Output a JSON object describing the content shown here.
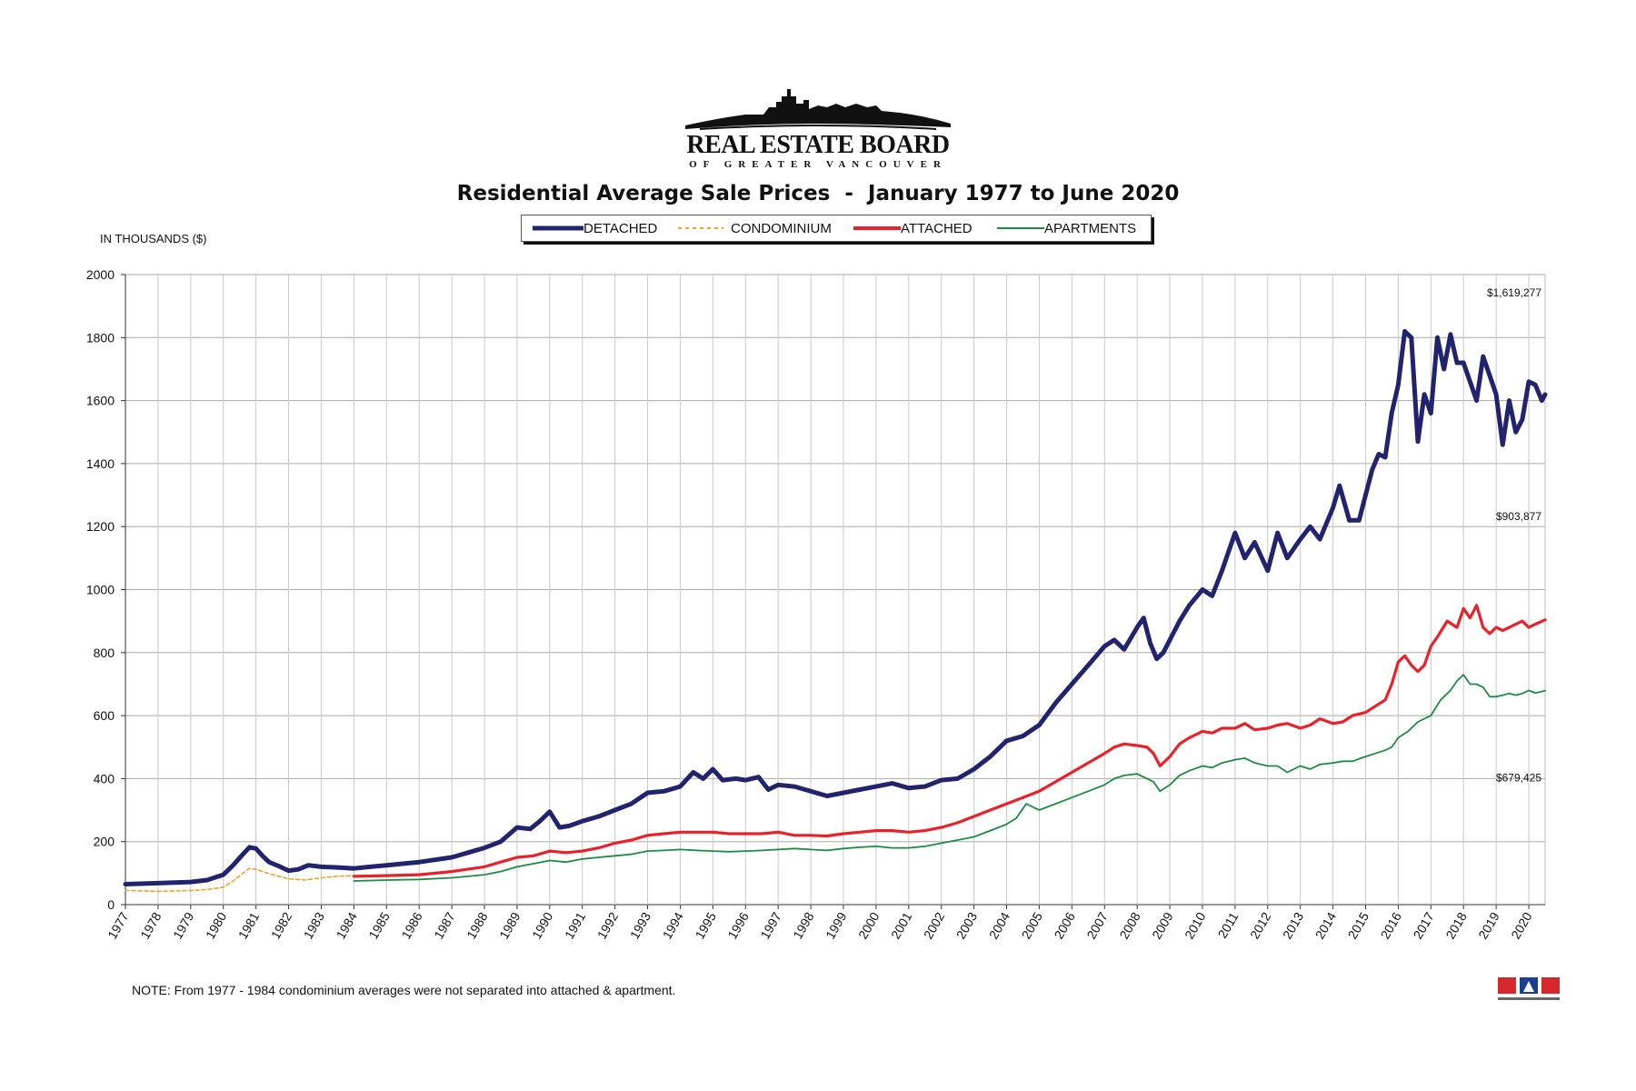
{
  "header": {
    "logo_main": "REAL ESTATE BOARD",
    "logo_sub": "OF GREATER VANCOUVER",
    "note": "NOTE:  From 1977 - 1984 condominium averages were not separated into attached & apartment.",
    "mls_logo": "MLS"
  },
  "colors": {
    "detached": "#22236e",
    "condominium": "#f0a030",
    "attached": "#e8212a",
    "apartments": "#1f8a44",
    "grid": "#c8c8c8"
  },
  "chart_data": {
    "type": "line",
    "title": "Residential Average Sale Prices  -  January 1977 to June 2020",
    "ylabel": "IN THOUSANDS ($)",
    "xlabel": "",
    "ylim": [
      0,
      2000
    ],
    "xlim": [
      1977,
      2020.5
    ],
    "yticks": [
      "0",
      "200",
      "400",
      "600",
      "800",
      "1000",
      "1200",
      "1400",
      "1600",
      "1800",
      "2000"
    ],
    "xticks": [
      "1977",
      "1978",
      "1979",
      "1980",
      "1981",
      "1982",
      "1983",
      "1984",
      "1985",
      "1986",
      "1987",
      "1988",
      "1989",
      "1990",
      "1991",
      "1992",
      "1993",
      "1994",
      "1995",
      "1996",
      "1997",
      "1998",
      "1999",
      "2000",
      "2001",
      "2002",
      "2003",
      "2004",
      "2005",
      "2006",
      "2007",
      "2008",
      "2009",
      "2010",
      "2011",
      "2012",
      "2013",
      "2014",
      "2015",
      "2016",
      "2017",
      "2018",
      "2019",
      "2020"
    ],
    "legend_position": "top-center",
    "grid": true,
    "series": [
      {
        "name": "DETACHED",
        "x": [
          1977,
          1978,
          1979,
          1979.5,
          1980,
          1980.3,
          1980.6,
          1980.8,
          1981,
          1981.2,
          1981.4,
          1981.7,
          1982,
          1982.3,
          1982.6,
          1983,
          1983.5,
          1984,
          1984.5,
          1985,
          1986,
          1987,
          1987.5,
          1988,
          1988.5,
          1989,
          1989.4,
          1989.7,
          1990,
          1990.3,
          1990.6,
          1991,
          1991.5,
          1992,
          1992.5,
          1993,
          1993.5,
          1994,
          1994.4,
          1994.7,
          1995,
          1995.3,
          1995.7,
          1996,
          1996.4,
          1996.7,
          1997,
          1997.5,
          1998,
          1998.5,
          1999,
          1999.5,
          2000,
          2000.5,
          2001,
          2001.5,
          2002,
          2002.5,
          2003,
          2003.5,
          2004,
          2004.5,
          2005,
          2005.5,
          2006,
          2006.5,
          2007,
          2007.3,
          2007.6,
          2008,
          2008.2,
          2008.4,
          2008.6,
          2008.8,
          2009,
          2009.3,
          2009.6,
          2010,
          2010.3,
          2010.6,
          2011,
          2011.3,
          2011.6,
          2012,
          2012.3,
          2012.6,
          2013,
          2013.3,
          2013.6,
          2014,
          2014.2,
          2014.5,
          2014.8,
          2015,
          2015.2,
          2015.4,
          2015.6,
          2015.8,
          2016,
          2016.2,
          2016.4,
          2016.6,
          2016.8,
          2017,
          2017.2,
          2017.4,
          2017.6,
          2017.8,
          2018,
          2018.2,
          2018.4,
          2018.6,
          2018.8,
          2019,
          2019.2,
          2019.4,
          2019.6,
          2019.8,
          2020,
          2020.2,
          2020.4,
          2020.5
        ],
        "values": [
          65,
          68,
          72,
          78,
          95,
          125,
          160,
          182,
          178,
          155,
          135,
          122,
          108,
          112,
          125,
          120,
          118,
          115,
          120,
          125,
          135,
          150,
          165,
          180,
          200,
          245,
          240,
          265,
          295,
          245,
          250,
          265,
          280,
          300,
          320,
          355,
          360,
          375,
          420,
          400,
          430,
          395,
          400,
          395,
          405,
          365,
          380,
          375,
          360,
          345,
          355,
          365,
          375,
          385,
          370,
          375,
          395,
          400,
          430,
          470,
          520,
          535,
          570,
          640,
          700,
          760,
          820,
          840,
          810,
          880,
          910,
          830,
          780,
          800,
          840,
          900,
          950,
          1000,
          980,
          1060,
          1180,
          1100,
          1150,
          1060,
          1180,
          1100,
          1160,
          1200,
          1160,
          1260,
          1330,
          1220,
          1220,
          1300,
          1380,
          1430,
          1420,
          1560,
          1650,
          1820,
          1800,
          1470,
          1620,
          1560,
          1800,
          1700,
          1810,
          1720,
          1720,
          1660,
          1600,
          1740,
          1680,
          1620,
          1460,
          1600,
          1500,
          1540,
          1660,
          1650,
          1600,
          1619
        ]
      },
      {
        "name": "CONDOMINIUM",
        "x": [
          1977,
          1978,
          1979,
          1979.5,
          1980,
          1980.3,
          1980.6,
          1980.8,
          1981,
          1981.3,
          1981.6,
          1982,
          1982.5,
          1983,
          1983.5,
          1984
        ],
        "values": [
          45,
          42,
          45,
          48,
          55,
          75,
          100,
          115,
          112,
          102,
          92,
          82,
          78,
          85,
          90,
          92
        ]
      },
      {
        "name": "ATTACHED",
        "x": [
          1984,
          1985,
          1986,
          1987,
          1988,
          1988.5,
          1989,
          1989.5,
          1990,
          1990.5,
          1991,
          1991.5,
          1992,
          1992.5,
          1993,
          1993.5,
          1994,
          1994.5,
          1995,
          1995.5,
          1996,
          1996.5,
          1997,
          1997.5,
          1998,
          1998.5,
          1999,
          1999.5,
          2000,
          2000.5,
          2001,
          2001.5,
          2002,
          2002.5,
          2003,
          2003.5,
          2004,
          2004.5,
          2005,
          2005.5,
          2006,
          2006.5,
          2007,
          2007.3,
          2007.6,
          2008,
          2008.3,
          2008.5,
          2008.7,
          2009,
          2009.3,
          2009.6,
          2010,
          2010.3,
          2010.6,
          2011,
          2011.3,
          2011.6,
          2012,
          2012.3,
          2012.6,
          2013,
          2013.3,
          2013.6,
          2014,
          2014.3,
          2014.6,
          2015,
          2015.3,
          2015.6,
          2015.8,
          2016,
          2016.2,
          2016.4,
          2016.6,
          2016.8,
          2017,
          2017.2,
          2017.5,
          2017.8,
          2018,
          2018.2,
          2018.4,
          2018.6,
          2018.8,
          2019,
          2019.2,
          2019.4,
          2019.6,
          2019.8,
          2020,
          2020.2,
          2020.5
        ],
        "values": [
          90,
          92,
          95,
          105,
          120,
          135,
          150,
          155,
          170,
          165,
          170,
          180,
          195,
          205,
          220,
          225,
          230,
          230,
          230,
          225,
          225,
          225,
          230,
          220,
          220,
          218,
          225,
          230,
          235,
          235,
          230,
          235,
          245,
          260,
          280,
          300,
          320,
          340,
          360,
          390,
          420,
          450,
          480,
          500,
          510,
          505,
          500,
          480,
          440,
          470,
          510,
          530,
          550,
          545,
          560,
          560,
          575,
          555,
          560,
          570,
          575,
          560,
          570,
          590,
          575,
          580,
          600,
          610,
          630,
          650,
          700,
          770,
          790,
          760,
          740,
          760,
          820,
          850,
          900,
          880,
          940,
          910,
          950,
          880,
          860,
          880,
          870,
          880,
          890,
          900,
          880,
          890,
          904
        ]
      },
      {
        "name": "APARTMENTS",
        "x": [
          1984,
          1985,
          1986,
          1987,
          1988,
          1988.5,
          1989,
          1989.5,
          1990,
          1990.5,
          1991,
          1991.5,
          1992,
          1992.5,
          1993,
          1993.5,
          1994,
          1994.5,
          1995,
          1995.5,
          1996,
          1996.5,
          1997,
          1997.5,
          1998,
          1998.5,
          1999,
          1999.5,
          2000,
          2000.5,
          2001,
          2001.5,
          2002,
          2002.5,
          2003,
          2003.5,
          2004,
          2004.3,
          2004.6,
          2005,
          2005.5,
          2006,
          2006.5,
          2007,
          2007.3,
          2007.6,
          2008,
          2008.3,
          2008.5,
          2008.7,
          2009,
          2009.3,
          2009.6,
          2010,
          2010.3,
          2010.6,
          2011,
          2011.3,
          2011.6,
          2012,
          2012.3,
          2012.6,
          2013,
          2013.3,
          2013.6,
          2014,
          2014.3,
          2014.6,
          2015,
          2015.3,
          2015.6,
          2015.8,
          2016,
          2016.3,
          2016.6,
          2017,
          2017.3,
          2017.6,
          2017.8,
          2018,
          2018.2,
          2018.4,
          2018.6,
          2018.8,
          2019,
          2019.2,
          2019.4,
          2019.6,
          2019.8,
          2020,
          2020.2,
          2020.5
        ],
        "values": [
          75,
          78,
          80,
          85,
          95,
          105,
          120,
          130,
          140,
          135,
          145,
          150,
          155,
          160,
          170,
          172,
          175,
          172,
          170,
          168,
          170,
          172,
          175,
          178,
          175,
          172,
          178,
          182,
          185,
          180,
          180,
          185,
          195,
          205,
          215,
          235,
          255,
          275,
          320,
          300,
          320,
          340,
          360,
          380,
          400,
          410,
          415,
          400,
          390,
          360,
          380,
          410,
          425,
          440,
          435,
          450,
          460,
          465,
          450,
          440,
          440,
          420,
          440,
          430,
          445,
          450,
          455,
          455,
          470,
          480,
          490,
          500,
          530,
          550,
          580,
          600,
          650,
          680,
          710,
          730,
          700,
          700,
          690,
          660,
          660,
          665,
          670,
          665,
          670,
          680,
          672,
          679
        ]
      }
    ],
    "annotations": [
      {
        "text": "$1,619,277",
        "x": 2020.5,
        "y": 1619
      },
      {
        "text": "$903,877",
        "x": 2020.5,
        "y": 904
      },
      {
        "text": "$679,425",
        "x": 2020.5,
        "y": 679
      }
    ]
  }
}
